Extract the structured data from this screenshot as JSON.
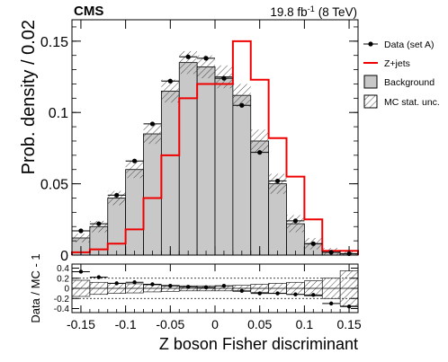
{
  "chart_data": {
    "type": "bar",
    "experiment": "CMS",
    "lumi_value": "19.8 fb",
    "lumi_exp": "-1",
    "lumi_energy": "(8 TeV)",
    "xlabel": "Z boson Fisher discriminant",
    "ylabel": "Prob. density / 0.02",
    "ratio_ylabel": "Data / MC - 1",
    "xlim": [
      -0.16,
      0.16
    ],
    "ylim": [
      0,
      0.165
    ],
    "ratio_ylim": [
      -0.48,
      0.48
    ],
    "x_ticks": [
      "-0.15",
      "-0.1",
      "-0.05",
      "0",
      "0.05",
      "0.1",
      "0.15"
    ],
    "y_ticks": [
      "0",
      "0.05",
      "0.1",
      "0.15"
    ],
    "ratio_ticks": [
      "-0.4",
      "-0.2",
      "0",
      "0.2",
      "0.4"
    ],
    "bin_edges": [
      -0.16,
      -0.14,
      -0.12,
      -0.1,
      -0.08,
      -0.06,
      -0.04,
      -0.02,
      0.0,
      0.02,
      0.04,
      0.06,
      0.08,
      0.1,
      0.12,
      0.14,
      0.16
    ],
    "legend": {
      "position": "right",
      "data": "Data (set A)",
      "zjets": "Z+jets",
      "background": "Background",
      "mcstat": "MC stat. unc."
    },
    "series": [
      {
        "name": "Background",
        "values": [
          0.012,
          0.02,
          0.04,
          0.06,
          0.085,
          0.115,
          0.135,
          0.132,
          0.125,
          0.112,
          0.08,
          0.05,
          0.022,
          0.008,
          0.002,
          0.001
        ]
      },
      {
        "name": "Z+jets",
        "values": [
          0.002,
          0.004,
          0.008,
          0.018,
          0.04,
          0.07,
          0.11,
          0.12,
          0.12,
          0.15,
          0.123,
          0.082,
          0.055,
          0.025,
          0.003,
          0.003
        ]
      },
      {
        "name": "Data (set A)",
        "values": [
          0.017,
          0.022,
          0.042,
          0.066,
          0.092,
          0.122,
          0.139,
          0.138,
          0.124,
          0.105,
          0.072,
          0.052,
          0.024,
          0.008,
          0.002,
          0.001
        ]
      }
    ],
    "mc_stat_unc": [
      0.003,
      0.004,
      0.005,
      0.006,
      0.007,
      0.008,
      0.008,
      0.008,
      0.008,
      0.008,
      0.008,
      0.007,
      0.006,
      0.004,
      0.003,
      0.002
    ],
    "ratio": {
      "data_values": [
        0.33,
        0.22,
        0.1,
        0.12,
        0.08,
        0.05,
        0.03,
        0.02,
        0.05,
        -0.05,
        -0.1,
        -0.1,
        -0.12,
        -0.13,
        -0.3,
        -0.36
      ],
      "unc_band": [
        0.16,
        0.12,
        0.1,
        0.09,
        0.07,
        0.06,
        0.05,
        0.05,
        0.05,
        0.06,
        0.08,
        0.1,
        0.12,
        0.15,
        0.2,
        0.35
      ],
      "dashed_levels": [
        -0.2,
        0.2
      ]
    }
  }
}
